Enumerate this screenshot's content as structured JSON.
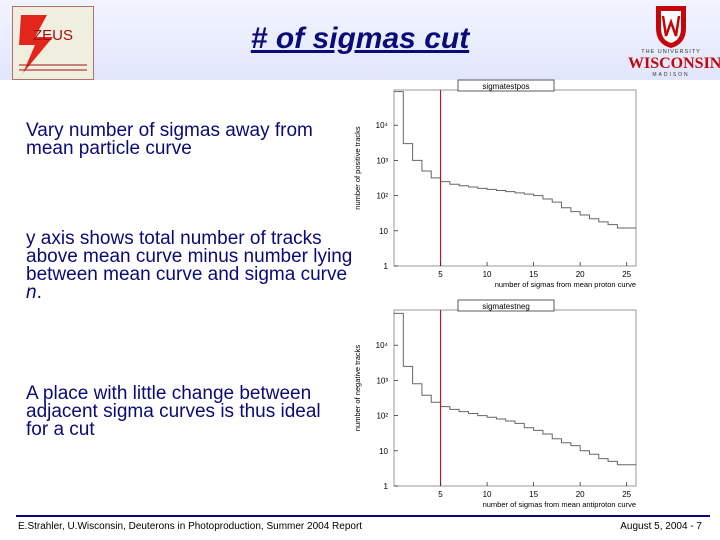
{
  "header": {
    "title": "# of sigmas cut",
    "logo_left_text": "ZEUS",
    "logo_right": {
      "line1": "THE UNIVERSITY",
      "line2": "WISCONSIN",
      "line3": "MADISON"
    }
  },
  "body": {
    "paragraph1": "Vary number of sigmas away from mean particle curve",
    "paragraph2_prefix": "y axis shows total number of tracks above mean curve minus number lying between mean curve and sigma curve ",
    "paragraph2_italic": "n",
    "paragraph2_suffix": ".",
    "paragraph3": "A place with little change between adjacent sigma curves is thus ideal for a cut"
  },
  "footer": {
    "left": "E.Strahler, U.Wisconsin, Deuterons in Photoproduction, Summer 2004 Report",
    "right": "August 5, 2004 - 7"
  },
  "colors": {
    "title": "#0a0a78",
    "cut_line": "#b02020",
    "histogram": "#666666"
  },
  "chart_data": [
    {
      "type": "line",
      "title": "sigmatestpos",
      "ylabel": "number of positive tracks",
      "xlabel": "number of sigmas from mean proton curve",
      "xlim": [
        0,
        26
      ],
      "ylog": true,
      "ylim": [
        1,
        100000
      ],
      "x_ticks": [
        5,
        10,
        15,
        20,
        25
      ],
      "x_tick_labels": [
        "5",
        "10",
        "15",
        "20",
        "25"
      ],
      "y_ticks": [
        1,
        10,
        100,
        1000,
        10000
      ],
      "y_tick_labels": [
        "1",
        "10",
        "10²",
        "10³",
        "10⁴"
      ],
      "cut_line_x": 5,
      "x": [
        0,
        1,
        2,
        3,
        4,
        5,
        6,
        7,
        8,
        9,
        10,
        11,
        12,
        13,
        14,
        15,
        16,
        17,
        18,
        19,
        20,
        21,
        22,
        23,
        24,
        25
      ],
      "values": [
        90000,
        3000,
        1000,
        500,
        320,
        250,
        210,
        190,
        175,
        160,
        150,
        140,
        130,
        120,
        110,
        100,
        80,
        65,
        45,
        35,
        28,
        22,
        18,
        15,
        12,
        12
      ]
    },
    {
      "type": "line",
      "title": "sigmatestneg",
      "ylabel": "number of negative tracks",
      "xlabel": "number of sigmas from mean antiproton curve",
      "xlim": [
        0,
        26
      ],
      "ylog": true,
      "ylim": [
        1,
        100000
      ],
      "x_ticks": [
        5,
        10,
        15,
        20,
        25
      ],
      "x_tick_labels": [
        "5",
        "10",
        "15",
        "20",
        "25"
      ],
      "y_ticks": [
        1,
        10,
        100,
        1000,
        10000
      ],
      "y_tick_labels": [
        "1",
        "10",
        "10²",
        "10³",
        "10⁴"
      ],
      "cut_line_x": 5,
      "x": [
        0,
        1,
        2,
        3,
        4,
        5,
        6,
        7,
        8,
        9,
        10,
        11,
        12,
        13,
        14,
        15,
        16,
        17,
        18,
        19,
        20,
        21,
        22,
        23,
        24,
        25
      ],
      "values": [
        80000,
        2500,
        800,
        380,
        240,
        180,
        150,
        130,
        115,
        100,
        90,
        80,
        70,
        60,
        45,
        38,
        30,
        22,
        17,
        14,
        10,
        8,
        6,
        5,
        4,
        4
      ]
    }
  ]
}
